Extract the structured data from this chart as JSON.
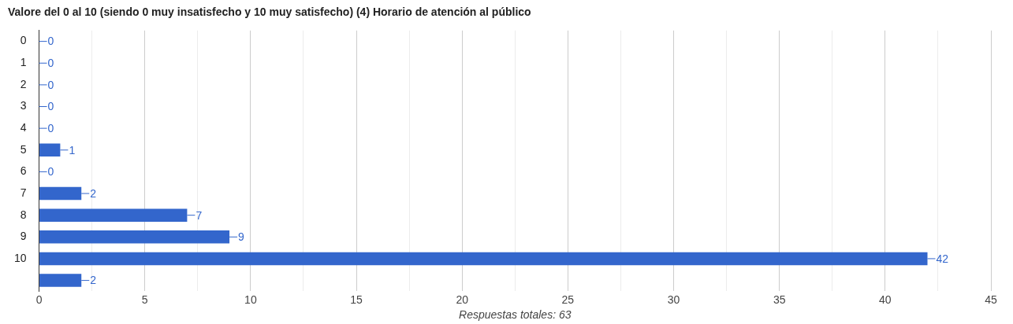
{
  "chart_data": {
    "type": "bar",
    "orientation": "horizontal",
    "title": "Valore del 0 al 10 (siendo 0 muy insatisfecho y 10 muy satisfecho) (4) Horario de atención al público",
    "xlabel": "Respuestas totales: 63",
    "categories": [
      "0",
      "1",
      "2",
      "3",
      "4",
      "5",
      "6",
      "7",
      "8",
      "9",
      "10",
      null
    ],
    "values": [
      0,
      0,
      0,
      0,
      0,
      1,
      0,
      2,
      7,
      9,
      42,
      2
    ],
    "color": "#3366cc",
    "xlim": [
      0,
      45
    ],
    "xticks": [
      0,
      {
        "value": 2.5,
        "label": null
      },
      5,
      {
        "value": 7.5,
        "label": null
      },
      10,
      {
        "value": 12.5,
        "label": null
      },
      15,
      {
        "value": 17.5,
        "label": null
      },
      20,
      {
        "value": 22.5,
        "label": null
      },
      25,
      {
        "value": 27.5,
        "label": null
      },
      30,
      {
        "value": 32.5,
        "label": null
      },
      35,
      {
        "value": 37.5,
        "label": null
      },
      40,
      {
        "value": 42.5,
        "label": null
      },
      45
    ],
    "grid": "x",
    "data_labels": true,
    "legend": false
  }
}
